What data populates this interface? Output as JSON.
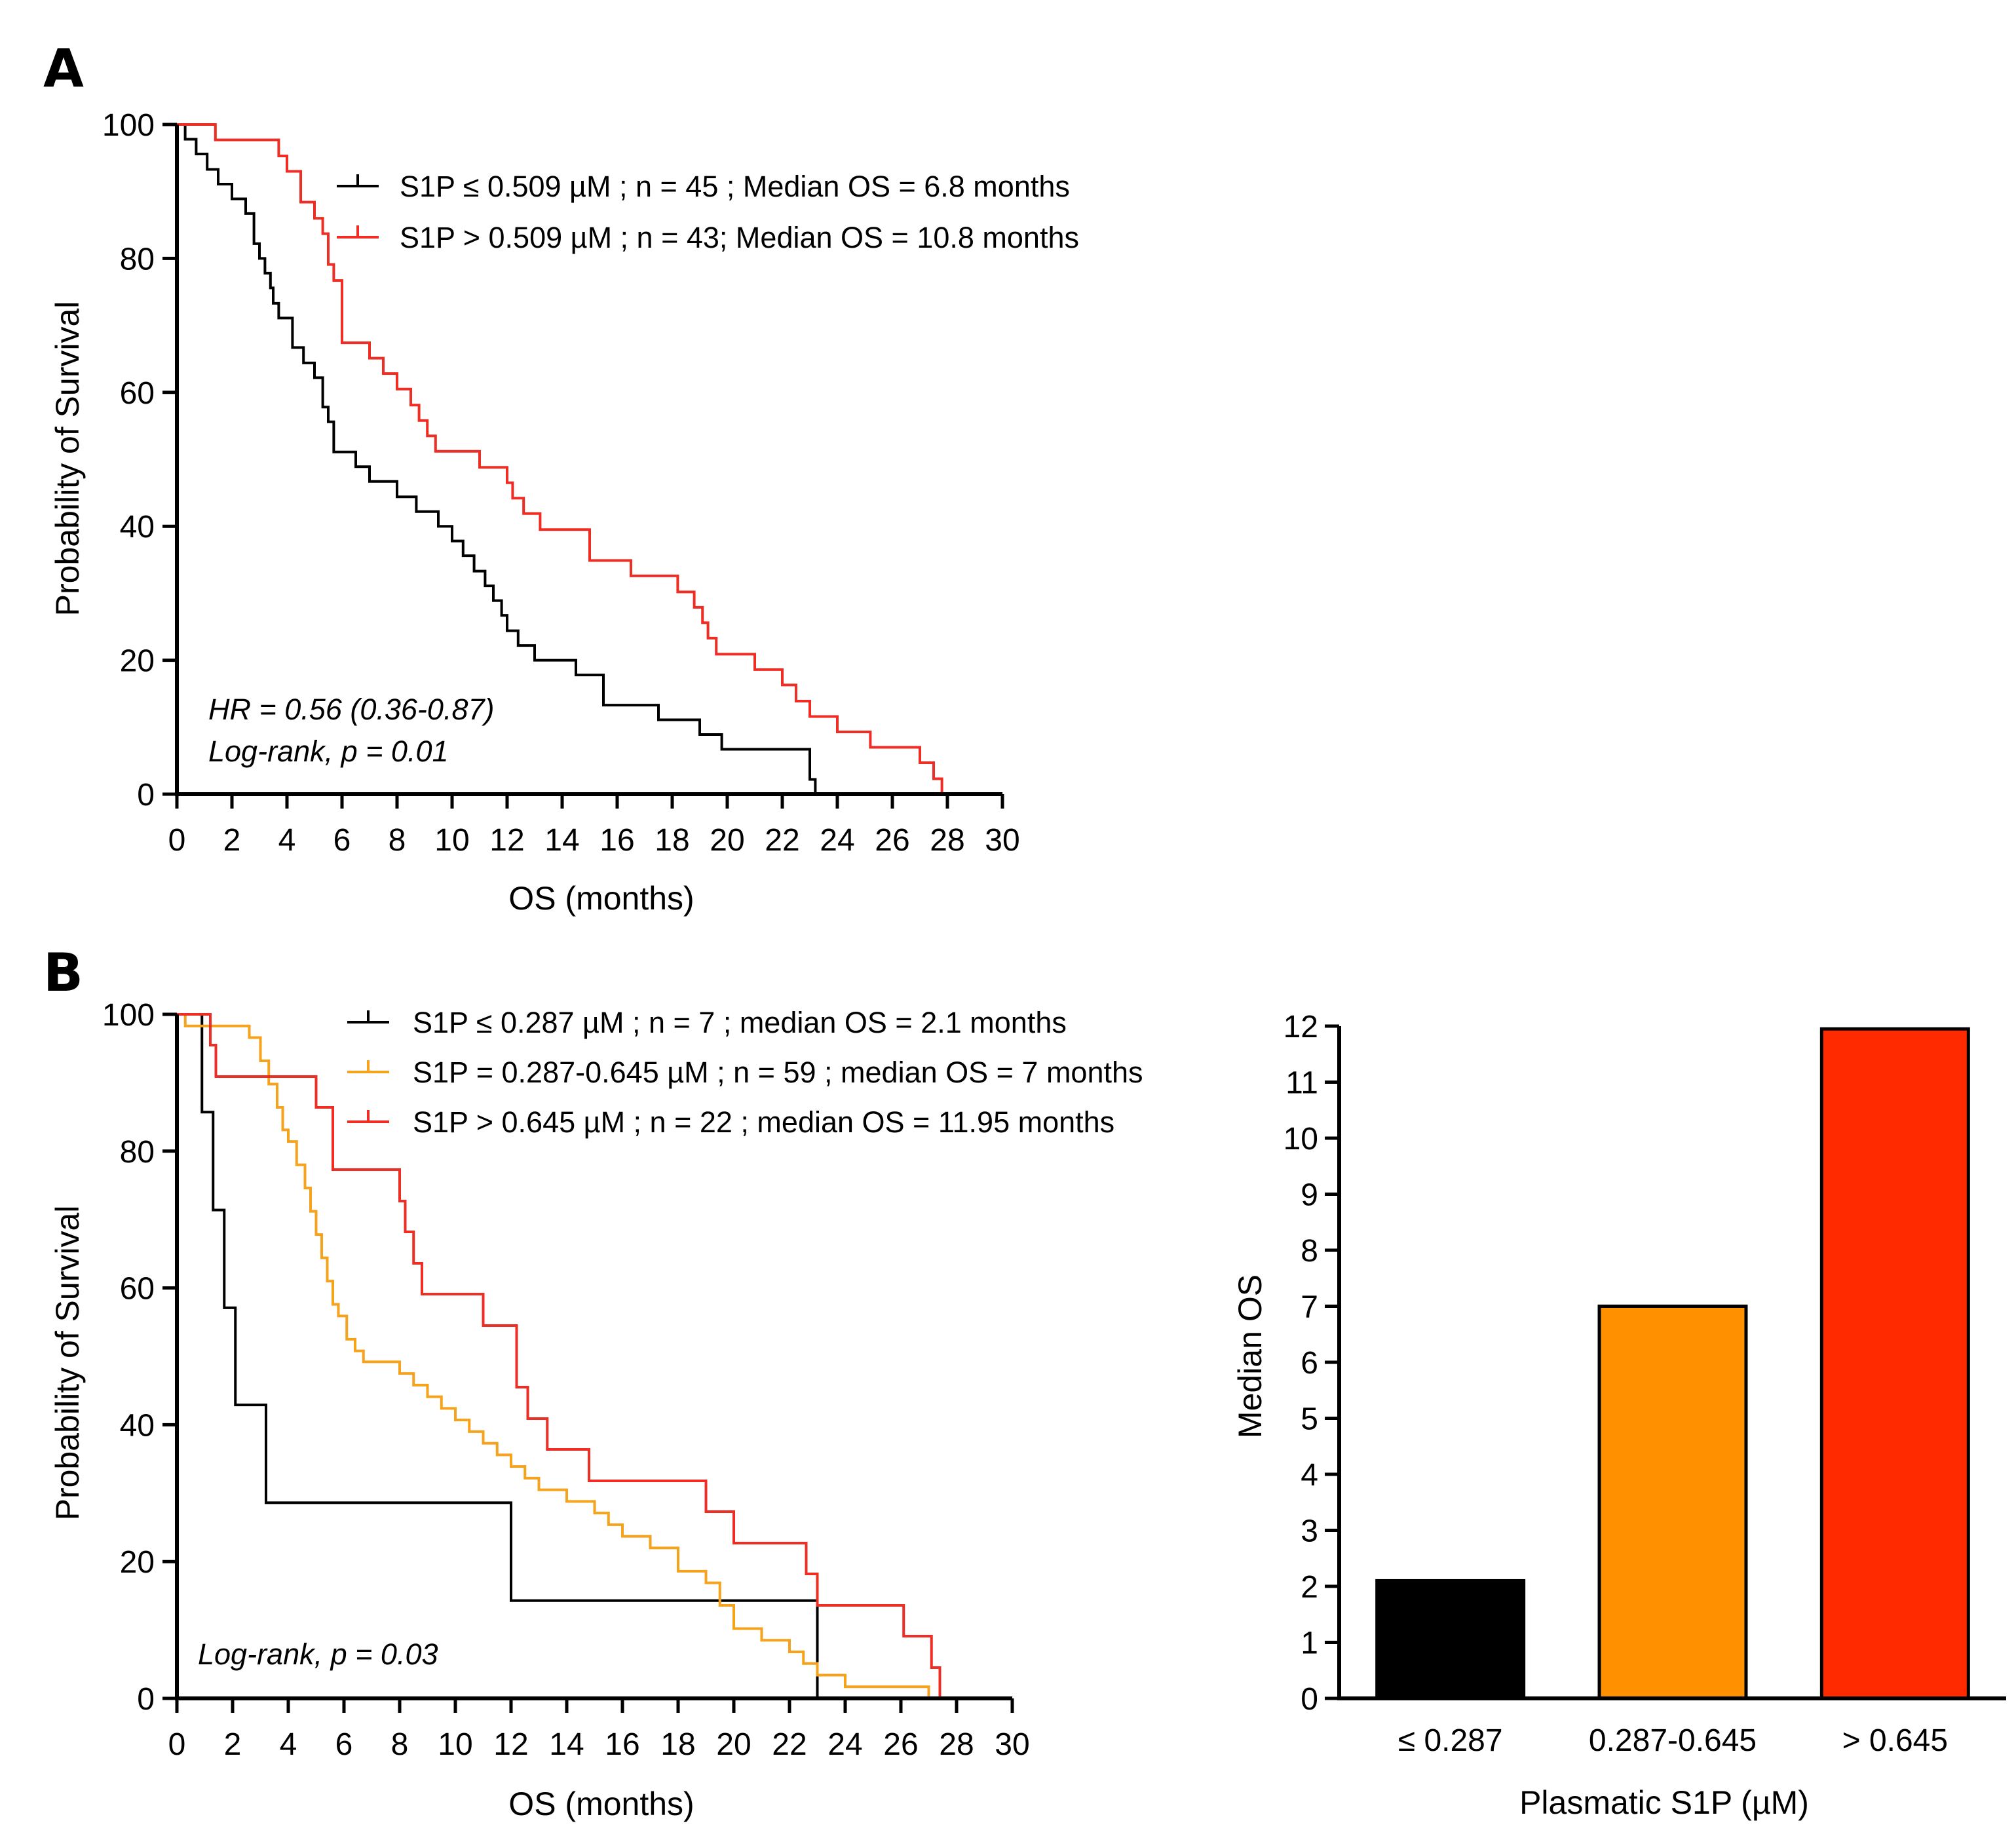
{
  "panels": {
    "a_label": "A",
    "b_label": "B"
  },
  "colors": {
    "black": "#000000",
    "red": "#ee2e24",
    "orange": "#f5a21c",
    "bar_black": "#000000",
    "bar_orange": "#ff9100",
    "bar_red": "#ff2a00"
  },
  "chart_data": [
    {
      "id": "km_a",
      "type": "line",
      "title": "",
      "xlabel": "OS (months)",
      "ylabel": "Probability of Survival",
      "xlim": [
        0,
        30
      ],
      "ylim": [
        0,
        100
      ],
      "xticks": [
        "0",
        "2",
        "4",
        "6",
        "8",
        "10",
        "12",
        "14",
        "16",
        "18",
        "20",
        "22",
        "24",
        "26",
        "28",
        "30"
      ],
      "yticks": [
        "0",
        "20",
        "40",
        "60",
        "80",
        "100"
      ],
      "annotations": [
        "HR = 0.56 (0.36-0.87)",
        "Log-rank, p = 0.01"
      ],
      "series": [
        {
          "name": "S1P ≤ 0.509 µM ; n = 45 ; Median OS = 6.8 months",
          "color": "#000000",
          "x": [
            0,
            0.3,
            0.7,
            1.1,
            1.5,
            2.0,
            2.5,
            2.8,
            3.0,
            3.2,
            3.4,
            3.5,
            3.7,
            4.2,
            4.6,
            5.0,
            5.3,
            5.5,
            5.7,
            6.0,
            6.5,
            7.0,
            8.0,
            8.7,
            9.5,
            10.0,
            10.4,
            10.8,
            11.2,
            11.5,
            11.8,
            12.0,
            12.4,
            13.0,
            14.5,
            15.5,
            17.5,
            19.0,
            19.8,
            23.0,
            23.2,
            24.3
          ],
          "y": [
            100,
            97.8,
            95.6,
            93.3,
            91.1,
            88.9,
            86.7,
            82.2,
            80.0,
            77.8,
            75.6,
            73.3,
            71.1,
            66.7,
            64.4,
            62.2,
            57.8,
            55.6,
            51.1,
            51.1,
            48.9,
            46.7,
            44.4,
            42.2,
            40.0,
            37.8,
            35.6,
            33.3,
            31.1,
            28.9,
            26.7,
            24.4,
            22.2,
            20.0,
            17.8,
            13.3,
            11.1,
            8.9,
            6.7,
            2.2,
            0.0,
            0.0
          ]
        },
        {
          "name": "S1P > 0.509 µM ; n = 43; Median OS = 10.8 months",
          "color": "#ee2e24",
          "x": [
            0,
            1.2,
            1.4,
            3.7,
            4.0,
            4.5,
            5.0,
            5.3,
            5.5,
            5.7,
            6.0,
            7.0,
            7.5,
            8.0,
            8.5,
            8.8,
            9.1,
            9.4,
            10.2,
            11.0,
            12.0,
            12.2,
            12.6,
            13.2,
            15.0,
            16.5,
            18.2,
            18.8,
            19.1,
            19.3,
            19.6,
            20.0,
            21.0,
            22.0,
            22.5,
            23.0,
            24.0,
            25.2,
            26.0,
            27.0,
            27.5,
            27.8
          ],
          "y": [
            100,
            100,
            97.7,
            95.3,
            93.0,
            88.4,
            86.0,
            83.7,
            79.1,
            76.7,
            67.4,
            65.1,
            62.8,
            60.5,
            58.1,
            55.8,
            53.5,
            51.2,
            51.2,
            48.8,
            46.5,
            44.2,
            41.9,
            39.5,
            34.9,
            32.6,
            30.2,
            27.9,
            25.6,
            23.3,
            20.9,
            20.9,
            18.6,
            16.3,
            13.9,
            11.6,
            9.3,
            7.0,
            7.0,
            4.7,
            2.3,
            0.0
          ]
        }
      ]
    },
    {
      "id": "km_b",
      "type": "line",
      "title": "",
      "xlabel": "OS (months)",
      "ylabel": "Probability of Survival",
      "xlim": [
        0,
        30
      ],
      "ylim": [
        0,
        100
      ],
      "xticks": [
        "0",
        "2",
        "4",
        "6",
        "8",
        "10",
        "12",
        "14",
        "16",
        "18",
        "20",
        "22",
        "24",
        "26",
        "28",
        "30"
      ],
      "yticks": [
        "0",
        "20",
        "40",
        "60",
        "80",
        "100"
      ],
      "annotations": [
        "Log-rank, p = 0.03"
      ],
      "series": [
        {
          "name": "S1P ≤ 0.287 µM ; n = 7 ; median OS = 2.1 months",
          "color": "#000000",
          "x": [
            0,
            0.9,
            1.3,
            1.7,
            2.1,
            3.2,
            12.0,
            23.0
          ],
          "y": [
            100,
            85.7,
            71.4,
            57.1,
            42.9,
            28.6,
            14.3,
            0.0
          ]
        },
        {
          "name": "S1P = 0.287-0.645 µM ; n = 59 ; median OS = 7 months",
          "color": "#f5a21c",
          "x": [
            0,
            0.3,
            2.6,
            3.0,
            3.3,
            3.6,
            3.8,
            4.0,
            4.3,
            4.6,
            4.8,
            5.0,
            5.2,
            5.4,
            5.6,
            5.8,
            6.1,
            6.4,
            6.7,
            7.0,
            8.0,
            8.5,
            9.0,
            9.5,
            10.0,
            10.5,
            11.0,
            11.5,
            12.0,
            12.5,
            13.0,
            14.0,
            15.0,
            15.5,
            16.0,
            17.0,
            18.0,
            19.0,
            19.5,
            20.0,
            21.0,
            22.0,
            22.5,
            23.0,
            24.0,
            25.0,
            27.0,
            27.8
          ],
          "y": [
            100,
            98.3,
            96.6,
            93.2,
            89.8,
            86.4,
            83.1,
            81.4,
            78.0,
            74.6,
            71.2,
            67.8,
            64.4,
            61.0,
            57.6,
            55.9,
            52.5,
            50.8,
            49.2,
            49.2,
            47.5,
            45.8,
            44.1,
            42.4,
            40.7,
            39.0,
            37.3,
            35.6,
            33.9,
            32.2,
            30.5,
            28.8,
            27.1,
            25.4,
            23.7,
            22.0,
            18.6,
            16.9,
            13.6,
            10.2,
            8.5,
            6.8,
            5.1,
            3.4,
            1.7,
            1.7,
            0.0,
            0.0
          ]
        },
        {
          "name": "S1P > 0.645 µM ; n = 22 ; median OS = 11.95 months",
          "color": "#ee2e24",
          "x": [
            0,
            1.2,
            1.4,
            5.0,
            5.6,
            7.5,
            8.0,
            8.2,
            8.5,
            8.8,
            9.2,
            11.0,
            12.0,
            12.2,
            12.6,
            13.3,
            14.8,
            19.0,
            20.0,
            22.6,
            23.0,
            25.0,
            26.1,
            27.1,
            27.4
          ],
          "y": [
            100,
            95.5,
            90.9,
            86.4,
            77.3,
            77.3,
            72.7,
            68.2,
            63.6,
            59.1,
            59.1,
            54.5,
            54.5,
            45.5,
            40.9,
            36.4,
            31.8,
            27.3,
            22.7,
            18.2,
            13.6,
            13.6,
            9.1,
            4.5,
            0.0
          ]
        }
      ]
    },
    {
      "id": "bar_b",
      "type": "bar",
      "title": "",
      "xlabel": "Plasmatic S1P (µM)",
      "ylabel": "Median OS",
      "ylim": [
        0,
        12
      ],
      "yticks": [
        "0",
        "1",
        "2",
        "3",
        "4",
        "5",
        "6",
        "7",
        "8",
        "9",
        "10",
        "11",
        "12"
      ],
      "categories": [
        "≤  0.287",
        "0.287-0.645",
        "> 0.645"
      ],
      "values": [
        2.1,
        7.0,
        11.95
      ],
      "colors": [
        "#000000",
        "#ff9100",
        "#ff2a00"
      ]
    }
  ]
}
